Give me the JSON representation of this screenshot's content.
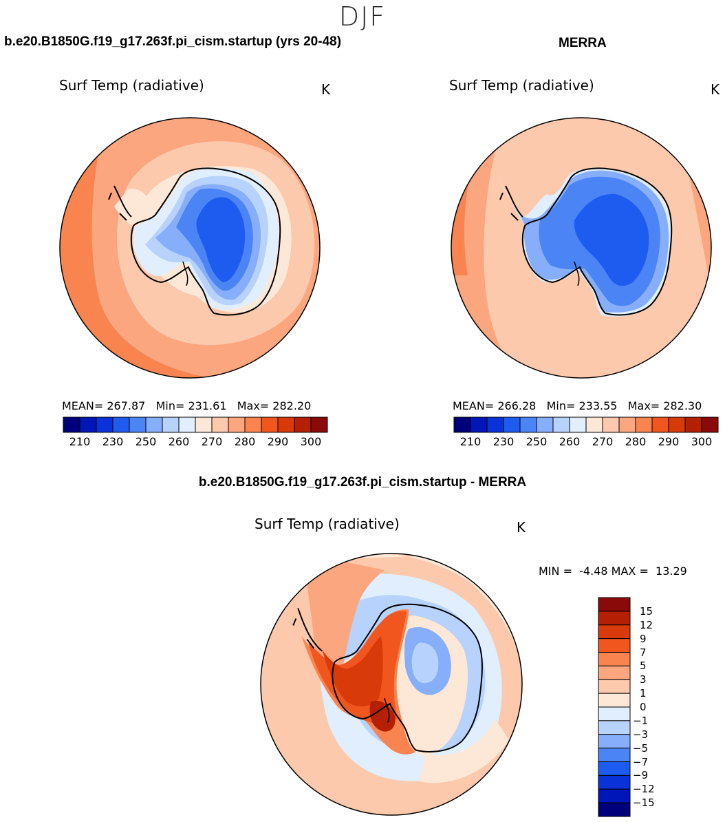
{
  "season": "DJF",
  "top_left": {
    "case": "b.e20.B1850G.f19_g17.263f.pi_cism.startup (yrs 20-48)",
    "title": "Surf Temp (radiative)",
    "units": "K",
    "mean_label": "MEAN=",
    "mean": "267.87",
    "min_label": "Min=",
    "min": "231.61",
    "max_label": "Max=",
    "max": "282.20"
  },
  "top_right": {
    "case": "MERRA",
    "title": "Surf Temp (radiative)",
    "units": "K",
    "mean_label": "MEAN=",
    "mean": "266.28",
    "min_label": "Min=",
    "min": "233.55",
    "max_label": "Max=",
    "max": "282.30"
  },
  "bottom": {
    "case": "b.e20.B1850G.f19_g17.263f.pi_cism.startup - MERRA",
    "title": "Surf Temp (radiative)",
    "units": "K",
    "min_label": "MIN =",
    "min": "-4.48",
    "max_label": "MAX =",
    "max": "13.29"
  },
  "chart_data": [
    {
      "type": "heatmap",
      "title": "Surf Temp (radiative)",
      "subtitle": "b.e20.B1850G.f19_g17.263f.pi_cism.startup (yrs 20-48)",
      "units": "K",
      "colorbar_ticks": [
        "210",
        "230",
        "250",
        "260",
        "270",
        "280",
        "290",
        "300"
      ],
      "colorbar_colors": [
        "#00007a",
        "#0016b8",
        "#0a32d9",
        "#1e5cf0",
        "#4a84f5",
        "#86aefa",
        "#b7d2fc",
        "#e0eefd",
        "#fde8d8",
        "#fcc9ad",
        "#fba67f",
        "#f98450",
        "#f0561e",
        "#d93a0a",
        "#b52004",
        "#8a0a0a"
      ],
      "mean": 267.87,
      "min": 231.61,
      "max": 282.2
    },
    {
      "type": "heatmap",
      "title": "Surf Temp (radiative)",
      "subtitle": "MERRA",
      "units": "K",
      "colorbar_ticks": [
        "210",
        "230",
        "250",
        "260",
        "270",
        "280",
        "290",
        "300"
      ],
      "colorbar_colors": [
        "#00007a",
        "#0016b8",
        "#0a32d9",
        "#1e5cf0",
        "#4a84f5",
        "#86aefa",
        "#b7d2fc",
        "#e0eefd",
        "#fde8d8",
        "#fcc9ad",
        "#fba67f",
        "#f98450",
        "#f0561e",
        "#d93a0a",
        "#b52004",
        "#8a0a0a"
      ],
      "mean": 266.28,
      "min": 233.55,
      "max": 282.3
    },
    {
      "type": "heatmap",
      "title": "Surf Temp (radiative)",
      "subtitle": "b.e20.B1850G.f19_g17.263f.pi_cism.startup - MERRA",
      "units": "K",
      "colorbar_ticks": [
        "15",
        "12",
        "9",
        "7",
        "5",
        "3",
        "1",
        "0",
        "−1",
        "−3",
        "−5",
        "−7",
        "−9",
        "−12",
        "−15"
      ],
      "colorbar_colors": [
        "#8a0a0a",
        "#b52004",
        "#d93a0a",
        "#f0561e",
        "#f98450",
        "#fba67f",
        "#fcc9ad",
        "#fde8d8",
        "#e0eefd",
        "#b7d2fc",
        "#86aefa",
        "#4a84f5",
        "#1e5cf0",
        "#0a32d9",
        "#0016b8",
        "#00007a"
      ],
      "min": -4.48,
      "max": 13.29
    }
  ]
}
